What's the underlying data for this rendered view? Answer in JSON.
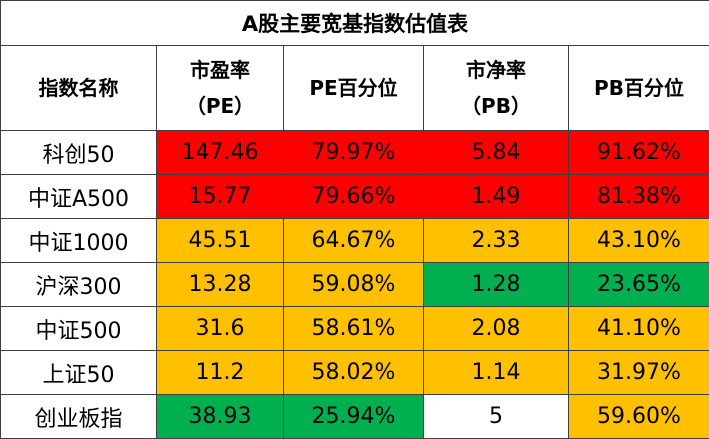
{
  "table": {
    "title": "A股主要宽基指数估值表",
    "headers": [
      {
        "line1": "指数名称",
        "line2": ""
      },
      {
        "line1": "市盈率",
        "line2": "（PE）"
      },
      {
        "line1": "PE百分位",
        "line2": ""
      },
      {
        "line1": "市净率",
        "line2": "（PB）"
      },
      {
        "line1": "PB百分位",
        "line2": ""
      }
    ],
    "colors": {
      "red": "#ff0000",
      "amber": "#ffc000",
      "green": "#00b050",
      "border": "#404040"
    },
    "rows": [
      {
        "name": "科创50",
        "pe": "147.46",
        "pe_pct": "79.97%",
        "pb": "5.84",
        "pb_pct": "91.62%",
        "pe_color": "red",
        "pe_pct_color": "red",
        "pb_color": "red",
        "pb_pct_color": "red"
      },
      {
        "name": "中证A500",
        "pe": "15.77",
        "pe_pct": "79.66%",
        "pb": "1.49",
        "pb_pct": "81.38%",
        "pe_color": "red",
        "pe_pct_color": "red",
        "pb_color": "red",
        "pb_pct_color": "red"
      },
      {
        "name": "中证1000",
        "pe": "45.51",
        "pe_pct": "64.67%",
        "pb": "2.33",
        "pb_pct": "43.10%",
        "pe_color": "amber",
        "pe_pct_color": "amber",
        "pb_color": "amber",
        "pb_pct_color": "amber"
      },
      {
        "name": "沪深300",
        "pe": "13.28",
        "pe_pct": "59.08%",
        "pb": "1.28",
        "pb_pct": "23.65%",
        "pe_color": "amber",
        "pe_pct_color": "amber",
        "pb_color": "green",
        "pb_pct_color": "green"
      },
      {
        "name": "中证500",
        "pe": "31.6",
        "pe_pct": "58.61%",
        "pb": "2.08",
        "pb_pct": "41.10%",
        "pe_color": "amber",
        "pe_pct_color": "amber",
        "pb_color": "amber",
        "pb_pct_color": "amber"
      },
      {
        "name": "上证50",
        "pe": "11.2",
        "pe_pct": "58.02%",
        "pb": "1.14",
        "pb_pct": "31.97%",
        "pe_color": "amber",
        "pe_pct_color": "amber",
        "pb_color": "amber",
        "pb_pct_color": "amber"
      },
      {
        "name": "创业板指",
        "pe": "38.93",
        "pe_pct": "25.94%",
        "pb": "5",
        "pb_pct": "59.60%",
        "pe_color": "green",
        "pe_pct_color": "green",
        "pb_color": "white",
        "pb_pct_color": "amber"
      }
    ]
  }
}
